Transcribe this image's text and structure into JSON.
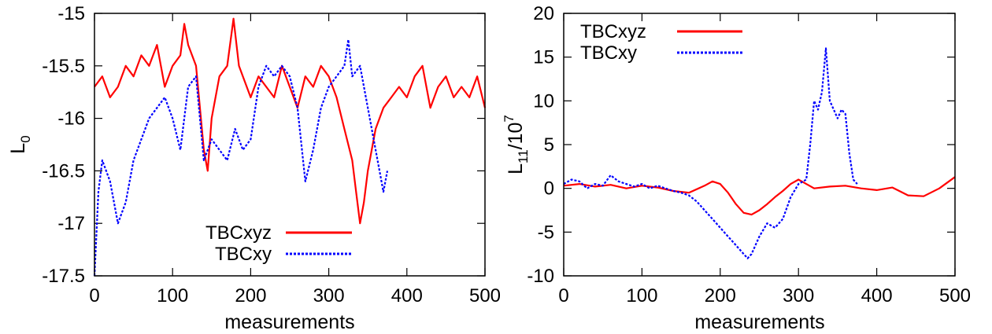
{
  "chart_data": [
    {
      "type": "line",
      "title": "",
      "xlabel": "measurements",
      "ylabel": "L_0",
      "ylabel_main": "L",
      "ylabel_sub": "0",
      "xlim": [
        0,
        500
      ],
      "ylim": [
        -17.5,
        -15
      ],
      "xticks": [
        0,
        100,
        200,
        300,
        400,
        500
      ],
      "yticks": [
        -17.5,
        -17,
        -16.5,
        -16,
        -15.5,
        -15
      ],
      "xtick_labels": [
        "0",
        "100",
        "200",
        "300",
        "400",
        "500"
      ],
      "ytick_labels": [
        "-17.5",
        "-17",
        "-16.5",
        "-16",
        "-15.5",
        "-15"
      ],
      "grid": false,
      "legend_position": "bottom-right",
      "series": [
        {
          "name": "TBCxyz",
          "color": "#ff0000",
          "style": "solid",
          "x": [
            0,
            10,
            20,
            30,
            40,
            50,
            60,
            70,
            80,
            90,
            100,
            110,
            115,
            120,
            130,
            140,
            145,
            150,
            160,
            170,
            178,
            185,
            190,
            200,
            210,
            220,
            230,
            240,
            250,
            260,
            270,
            280,
            290,
            300,
            310,
            320,
            330,
            335,
            340,
            345,
            350,
            360,
            370,
            380,
            390,
            400,
            410,
            420,
            430,
            440,
            450,
            460,
            470,
            480,
            490,
            500
          ],
          "y": [
            -15.7,
            -15.6,
            -15.8,
            -15.7,
            -15.5,
            -15.6,
            -15.4,
            -15.5,
            -15.3,
            -15.7,
            -15.5,
            -15.4,
            -15.1,
            -15.3,
            -15.5,
            -16.3,
            -16.5,
            -16.0,
            -15.6,
            -15.5,
            -15.05,
            -15.5,
            -15.6,
            -15.8,
            -15.6,
            -15.7,
            -15.8,
            -15.5,
            -15.7,
            -15.9,
            -15.6,
            -15.7,
            -15.5,
            -15.6,
            -15.8,
            -16.1,
            -16.4,
            -16.7,
            -17.0,
            -16.8,
            -16.5,
            -16.1,
            -15.9,
            -15.8,
            -15.7,
            -15.8,
            -15.6,
            -15.5,
            -15.9,
            -15.7,
            -15.6,
            -15.8,
            -15.7,
            -15.8,
            -15.6,
            -15.9
          ]
        },
        {
          "name": "TBCxy",
          "color": "#0000ff",
          "style": "dotted",
          "x": [
            0,
            5,
            10,
            20,
            30,
            40,
            50,
            60,
            70,
            80,
            90,
            100,
            110,
            120,
            130,
            140,
            150,
            160,
            170,
            180,
            190,
            200,
            210,
            220,
            230,
            240,
            250,
            260,
            270,
            280,
            290,
            300,
            310,
            320,
            325,
            330,
            340,
            350,
            360,
            370,
            375
          ],
          "y": [
            -17.5,
            -16.7,
            -16.4,
            -16.6,
            -17.0,
            -16.8,
            -16.4,
            -16.2,
            -16.0,
            -15.9,
            -15.8,
            -16.0,
            -16.3,
            -15.7,
            -15.6,
            -16.4,
            -16.2,
            -16.3,
            -16.4,
            -16.1,
            -16.3,
            -16.2,
            -15.7,
            -15.5,
            -15.6,
            -15.5,
            -15.6,
            -15.9,
            -16.6,
            -16.3,
            -15.9,
            -15.7,
            -15.6,
            -15.5,
            -15.25,
            -15.6,
            -15.5,
            -15.9,
            -16.3,
            -16.7,
            -16.5
          ]
        }
      ]
    },
    {
      "type": "line",
      "title": "",
      "xlabel": "measurements",
      "ylabel": "L_11/10^7",
      "ylabel_l": "L",
      "ylabel_sub": "11",
      "ylabel_mid": "/10",
      "ylabel_sup": "7",
      "xlim": [
        0,
        500
      ],
      "ylim": [
        -10,
        20
      ],
      "xticks": [
        0,
        100,
        200,
        300,
        400,
        500
      ],
      "yticks": [
        -10,
        -5,
        0,
        5,
        10,
        15,
        20
      ],
      "xtick_labels": [
        "0",
        "100",
        "200",
        "300",
        "400",
        "500"
      ],
      "ytick_labels": [
        "-10",
        "-5",
        "0",
        "5",
        "10",
        "15",
        "20"
      ],
      "grid": false,
      "legend_position": "top-left",
      "series": [
        {
          "name": "TBCxyz",
          "color": "#ff0000",
          "style": "solid",
          "x": [
            0,
            20,
            40,
            60,
            80,
            100,
            120,
            140,
            160,
            180,
            190,
            200,
            210,
            220,
            230,
            240,
            250,
            260,
            270,
            280,
            290,
            300,
            310,
            320,
            340,
            360,
            380,
            400,
            420,
            440,
            460,
            480,
            500
          ],
          "y": [
            0.3,
            0.5,
            0.2,
            0.4,
            0.0,
            0.3,
            0.1,
            -0.3,
            -0.5,
            0.3,
            0.8,
            0.5,
            -0.5,
            -1.8,
            -2.8,
            -3.0,
            -2.5,
            -1.8,
            -1.0,
            -0.3,
            0.5,
            1.0,
            0.5,
            0.0,
            0.2,
            0.3,
            0.0,
            -0.2,
            0.1,
            -0.8,
            -0.9,
            0.0,
            1.3
          ]
        },
        {
          "name": "TBCxy",
          "color": "#0000ff",
          "style": "dotted",
          "x": [
            0,
            10,
            20,
            30,
            40,
            50,
            60,
            70,
            80,
            90,
            100,
            110,
            120,
            130,
            140,
            150,
            160,
            170,
            180,
            190,
            200,
            210,
            220,
            230,
            235,
            240,
            250,
            260,
            270,
            280,
            290,
            300,
            310,
            315,
            320,
            325,
            330,
            335,
            340,
            350,
            355,
            360,
            365,
            370,
            375
          ],
          "y": [
            0.5,
            1.0,
            0.8,
            0.0,
            0.5,
            0.3,
            1.5,
            0.8,
            0.5,
            0.2,
            0.5,
            0.0,
            0.3,
            0.0,
            -0.3,
            -0.5,
            -0.8,
            -1.5,
            -2.5,
            -3.5,
            -4.5,
            -5.5,
            -6.5,
            -7.5,
            -8.0,
            -7.5,
            -5.5,
            -4.0,
            -4.5,
            -3.5,
            -1.0,
            0.5,
            1.0,
            5.0,
            10.0,
            9.0,
            11.0,
            16.0,
            10.0,
            8.0,
            9.0,
            8.5,
            4.0,
            1.0,
            0.5
          ]
        }
      ]
    }
  ]
}
